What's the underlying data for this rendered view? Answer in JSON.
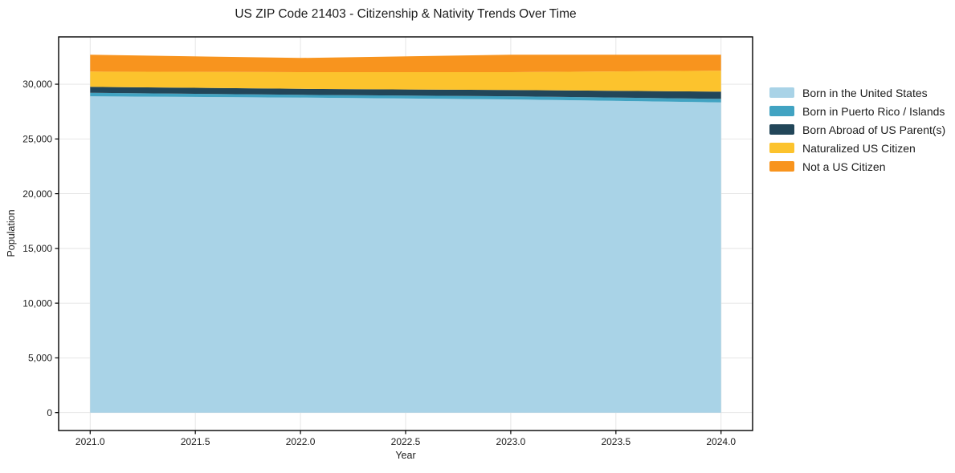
{
  "figure": {
    "title": "US ZIP Code 21403 - Citizenship & Nativity Trends Over Time"
  },
  "chart_data": {
    "type": "area",
    "stacked": true,
    "title": "US ZIP Code 21403 - Citizenship & Nativity Trends Over Time",
    "xlabel": "Year",
    "ylabel": "Population",
    "x": [
      2021,
      2022,
      2023,
      2024
    ],
    "series": [
      {
        "name": "Born in the United States",
        "color": "#a9d3e7",
        "values": [
          28900,
          28780,
          28610,
          28340
        ]
      },
      {
        "name": "Born in Puerto Rico / Islands",
        "color": "#41a3c2",
        "values": [
          320,
          250,
          290,
          320
        ]
      },
      {
        "name": "Born Abroad of US Parent(s)",
        "color": "#224659",
        "values": [
          540,
          550,
          570,
          660
        ]
      },
      {
        "name": "Naturalized US Citizen",
        "color": "#fcc32d",
        "values": [
          1390,
          1520,
          1630,
          1910
        ]
      },
      {
        "name": "Not a US Citizen",
        "color": "#f8941e",
        "values": [
          1540,
          1300,
          1590,
          1460
        ]
      }
    ],
    "x_range": [
      2020.85,
      2024.15
    ],
    "y_range": [
      -1634,
      34324
    ],
    "x_ticks": {
      "values": [
        2021,
        2021.5,
        2022,
        2022.5,
        2023,
        2023.5,
        2024
      ],
      "labels": [
        "2021.0",
        "2021.5",
        "2022.0",
        "2022.5",
        "2023.0",
        "2023.5",
        "2024.0"
      ]
    },
    "y_ticks": {
      "values": [
        0,
        5000,
        10000,
        15000,
        20000,
        25000,
        30000
      ],
      "labels": [
        "0",
        "5,000",
        "10,000",
        "15,000",
        "20,000",
        "25,000",
        "30,000"
      ]
    },
    "grid": true,
    "legend_position": "right",
    "colors": {
      "grid": "#e3e3e3",
      "spine": "#000000",
      "text": "#1c1c1c"
    }
  }
}
